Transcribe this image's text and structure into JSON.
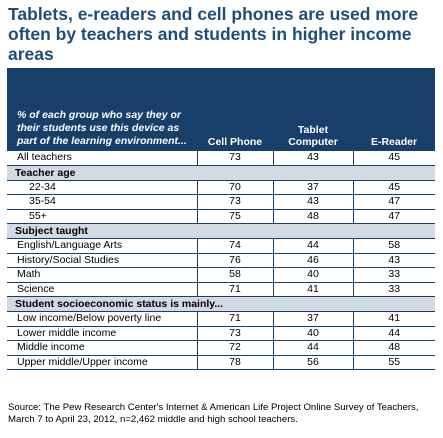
{
  "title": "Tablets, e-readers and cell phones are used more often by teachers and students in higher income areas",
  "colors": {
    "title": "#1f4e79",
    "header_bg": "#173f6a",
    "section_bg": "#d3dae4"
  },
  "chart_data": {
    "type": "table",
    "header": {
      "description": "% of each group who say they or their students use this device as part of the learning environment...",
      "columns": [
        "Cell Phone",
        "Tablet Computer",
        "E-Reader"
      ]
    },
    "rows": [
      {
        "kind": "row",
        "label": "All teachers",
        "values": [
          "73",
          "43",
          "45"
        ]
      },
      {
        "kind": "section",
        "label": "Teacher age"
      },
      {
        "kind": "row",
        "label": "22-34",
        "values": [
          "70",
          "37",
          "45"
        ]
      },
      {
        "kind": "row",
        "label": "35-54",
        "values": [
          "73",
          "43",
          "47"
        ]
      },
      {
        "kind": "row",
        "label": "55+",
        "values": [
          "75",
          "48",
          "47"
        ]
      },
      {
        "kind": "section",
        "label": "Subject taught"
      },
      {
        "kind": "row",
        "label": "English/Language Arts",
        "values": [
          "74",
          "44",
          "58"
        ]
      },
      {
        "kind": "row",
        "label": "History/Social Studies",
        "values": [
          "76",
          "46",
          "43"
        ]
      },
      {
        "kind": "row",
        "label": "Math",
        "values": [
          "58",
          "40",
          "33"
        ]
      },
      {
        "kind": "row",
        "label": "Science",
        "values": [
          "71",
          "41",
          "33"
        ]
      },
      {
        "kind": "section",
        "label": "Student socioeconomic status is mainly..."
      },
      {
        "kind": "row",
        "label": "Low income/Below poverty line",
        "values": [
          "71",
          "37",
          "41"
        ]
      },
      {
        "kind": "row",
        "label": "Lower middle income",
        "values": [
          "73",
          "40",
          "44"
        ]
      },
      {
        "kind": "row",
        "label": "Middle income",
        "values": [
          "72",
          "44",
          "48"
        ]
      },
      {
        "kind": "row",
        "label": "Upper middle/Upper income",
        "values": [
          "78",
          "56",
          "55"
        ]
      }
    ]
  },
  "source": "Source: The Pew Research Center's Internet & American Life Project Online Survey of Teachers, March 7 to April 23, 2012, n=2,462 middle and high school teachers."
}
